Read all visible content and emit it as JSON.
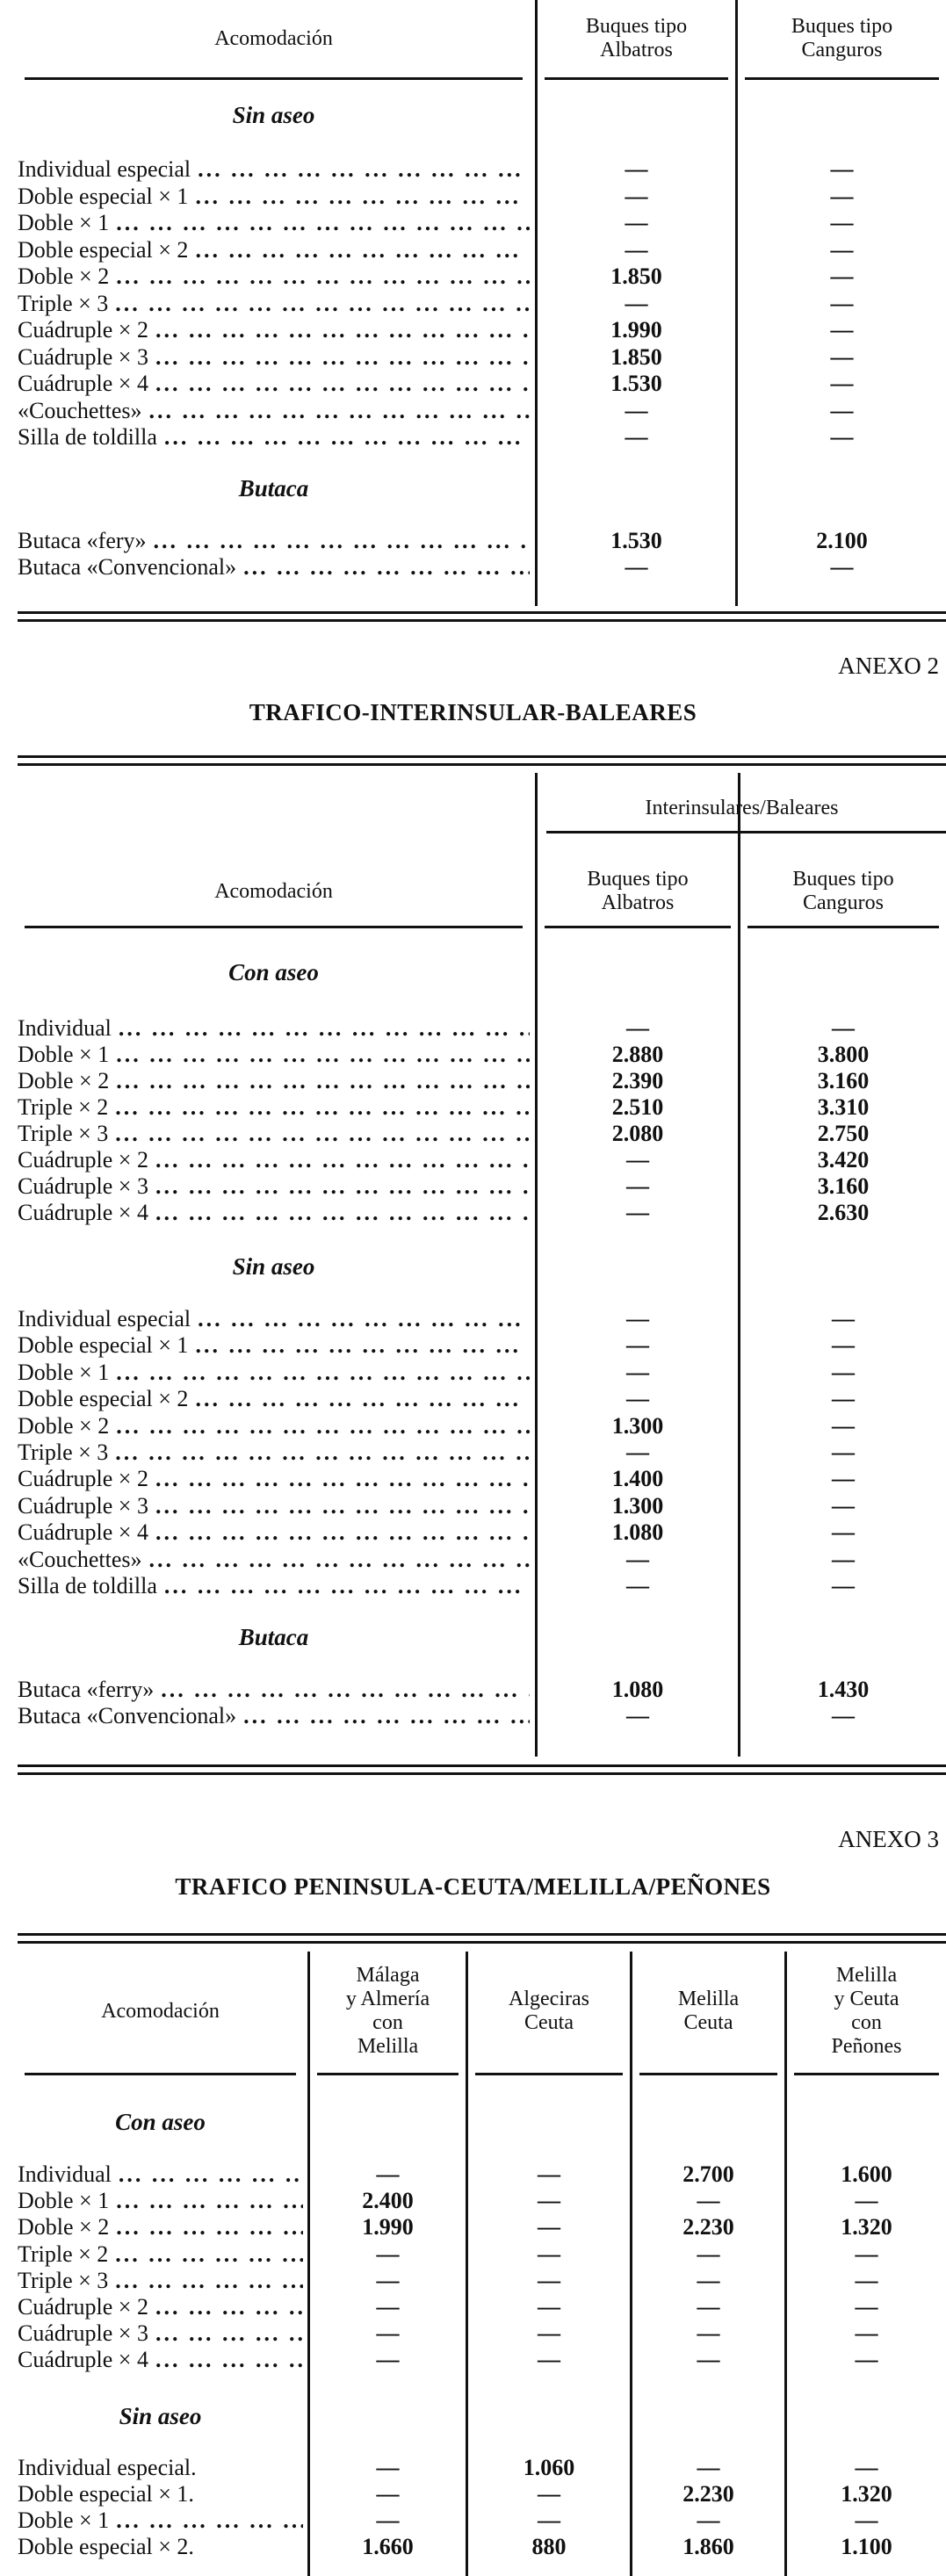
{
  "tables": [
    {
      "anexo": "",
      "title": "",
      "group_header": "",
      "headers": [
        "Acomodación",
        "Buques tipo\nAlbatros",
        "Buques tipo\nCanguros"
      ],
      "sections": [
        {
          "title": "Sin aseo",
          "rows": [
            {
              "label": "Individual especial",
              "values": [
                "—",
                "—"
              ]
            },
            {
              "label": "Doble especial × 1",
              "values": [
                "—",
                "—"
              ]
            },
            {
              "label": "Doble × 1",
              "values": [
                "—",
                "—"
              ]
            },
            {
              "label": "Doble especial × 2",
              "values": [
                "—",
                "—"
              ]
            },
            {
              "label": "Doble × 2",
              "values": [
                "1.850",
                "—"
              ]
            },
            {
              "label": "Triple × 3",
              "values": [
                "—",
                "—"
              ]
            },
            {
              "label": "Cuádruple × 2",
              "values": [
                "1.990",
                "—"
              ]
            },
            {
              "label": "Cuádruple × 3",
              "values": [
                "1.850",
                "—"
              ]
            },
            {
              "label": "Cuádruple × 4",
              "values": [
                "1.530",
                "—"
              ]
            },
            {
              "label": "«Couchettes»",
              "values": [
                "—",
                "—"
              ]
            },
            {
              "label": "Silla de toldilla",
              "values": [
                "—",
                "—"
              ]
            }
          ]
        },
        {
          "title": "Butaca",
          "rows": [
            {
              "label": "Butaca «fery»",
              "values": [
                "1.530",
                "2.100"
              ]
            },
            {
              "label": "Butaca «Convencional»",
              "values": [
                "—",
                "—"
              ]
            }
          ]
        }
      ]
    },
    {
      "anexo": "ANEXO 2",
      "title": "TRAFICO-INTERINSULAR-BALEARES",
      "group_header": "Interinsulares/Baleares",
      "headers": [
        "Acomodación",
        "Buques tipo\nAlbatros",
        "Buques tipo\nCanguros"
      ],
      "sections": [
        {
          "title": "Con aseo",
          "rows": [
            {
              "label": "Individual",
              "values": [
                "—",
                "—"
              ]
            },
            {
              "label": "Doble × 1",
              "values": [
                "2.880",
                "3.800"
              ]
            },
            {
              "label": "Doble × 2",
              "values": [
                "2.390",
                "3.160"
              ]
            },
            {
              "label": "Triple × 2",
              "values": [
                "2.510",
                "3.310"
              ]
            },
            {
              "label": "Triple × 3",
              "values": [
                "2.080",
                "2.750"
              ]
            },
            {
              "label": "Cuádruple × 2",
              "values": [
                "—",
                "3.420"
              ]
            },
            {
              "label": "Cuádruple × 3",
              "values": [
                "—",
                "3.160"
              ]
            },
            {
              "label": "Cuádruple × 4",
              "values": [
                "—",
                "2.630"
              ]
            }
          ]
        },
        {
          "title": "Sin aseo",
          "rows": [
            {
              "label": "Individual especial",
              "values": [
                "—",
                "—"
              ]
            },
            {
              "label": "Doble especial × 1",
              "values": [
                "—",
                "—"
              ]
            },
            {
              "label": "Doble × 1",
              "values": [
                "—",
                "—"
              ]
            },
            {
              "label": "Doble especial × 2",
              "values": [
                "—",
                "—"
              ]
            },
            {
              "label": "Doble × 2",
              "values": [
                "1.300",
                "—"
              ]
            },
            {
              "label": "Triple × 3",
              "values": [
                "—",
                "—"
              ]
            },
            {
              "label": "Cuádruple × 2",
              "values": [
                "1.400",
                "—"
              ]
            },
            {
              "label": "Cuádruple × 3",
              "values": [
                "1.300",
                "—"
              ]
            },
            {
              "label": "Cuádruple × 4",
              "values": [
                "1.080",
                "—"
              ]
            },
            {
              "label": "«Couchettes»",
              "values": [
                "—",
                "—"
              ]
            },
            {
              "label": "Silla de toldilla",
              "values": [
                "—",
                "—"
              ]
            }
          ]
        },
        {
          "title": "Butaca",
          "rows": [
            {
              "label": "Butaca «ferry»",
              "values": [
                "1.080",
                "1.430"
              ]
            },
            {
              "label": "Butaca «Convencional»",
              "values": [
                "—",
                "—"
              ]
            }
          ]
        }
      ]
    },
    {
      "anexo": "ANEXO 3",
      "title": "TRAFICO PENINSULA-CEUTA/MELILLA/PEÑONES",
      "group_header": "",
      "headers": [
        "Acomodación",
        "Málaga\ny Almería\ncon\nMelilla",
        "Algeciras\nCeuta",
        "Melilla\nCeuta",
        "Melilla\ny Ceuta\ncon\nPeñones"
      ],
      "sections": [
        {
          "title": "Con aseo",
          "rows": [
            {
              "label": "Individual",
              "values": [
                "—",
                "—",
                "2.700",
                "1.600"
              ]
            },
            {
              "label": "Doble × 1",
              "values": [
                "2.400",
                "—",
                "—",
                "—"
              ]
            },
            {
              "label": "Doble × 2",
              "values": [
                "1.990",
                "—",
                "2.230",
                "1.320"
              ]
            },
            {
              "label": "Triple × 2",
              "values": [
                "—",
                "—",
                "—",
                "—"
              ]
            },
            {
              "label": "Triple × 3",
              "values": [
                "—",
                "—",
                "—",
                "—"
              ]
            },
            {
              "label": "Cuádruple × 2",
              "values": [
                "—",
                "—",
                "—",
                "—"
              ]
            },
            {
              "label": "Cuádruple × 3",
              "values": [
                "—",
                "—",
                "—",
                "—"
              ]
            },
            {
              "label": "Cuádruple × 4",
              "values": [
                "—",
                "—",
                "—",
                "—"
              ]
            }
          ]
        },
        {
          "title": "Sin aseo",
          "rows": [
            {
              "label": "Individual especial.",
              "values": [
                "—",
                "1.060",
                "—",
                "—"
              ]
            },
            {
              "label": "Doble especial × 1.",
              "values": [
                "—",
                "—",
                "2.230",
                "1.320"
              ]
            },
            {
              "label": "Doble × 1",
              "values": [
                "—",
                "—",
                "—",
                "—"
              ]
            },
            {
              "label": "Doble especial × 2.",
              "values": [
                "1.660",
                "880",
                "1.860",
                "1.100"
              ]
            }
          ]
        }
      ]
    }
  ]
}
